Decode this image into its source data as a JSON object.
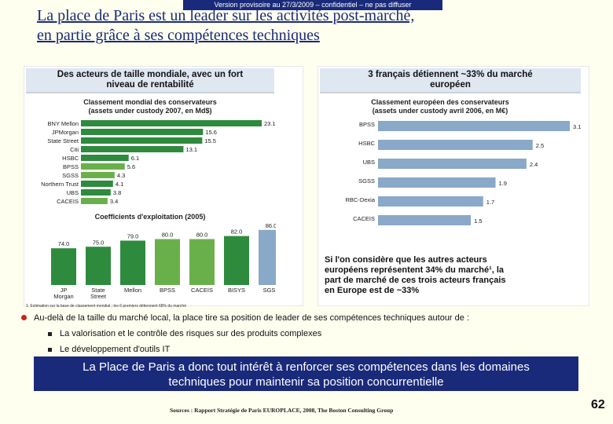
{
  "banner": "Version provisoire au 27/3/2009 – confidentiel – ne pas diffuser",
  "title_line1": "La place de Paris est un leader sur les activités post-marché,",
  "title_line2": "en partie grâce à ses compétences techniques",
  "left_panel": {
    "header_line1": "Des acteurs de taille mondiale, avec un fort",
    "header_line2": "niveau de rentabilité",
    "footnote": "1. Estimation sur la base de classement mondial ; les 6 premiers détiennent 68% du marché"
  },
  "right_panel": {
    "header_line1": "3 français détiennent ~33% du marché",
    "header_line2": "européen",
    "note_lines": [
      "Si l'on considère que les autres acteurs",
      "européens représentent 34% du marché¹, la",
      "part de marché de ces trois acteurs français",
      "en Europe est de ~33%"
    ]
  },
  "chart_data": [
    {
      "type": "bar",
      "orientation": "horizontal",
      "title_line1": "Classement mondial des conservateurs",
      "title_line2": "(assets under custody 2007, en Md$)",
      "categories": [
        "BNY Mellon",
        "JPMorgan",
        "State Street",
        "Citi",
        "HSBC",
        "BPSS",
        "SGSS",
        "Northern Trust",
        "UBS",
        "CACEIS"
      ],
      "values": [
        23.1,
        15.6,
        15.5,
        13.1,
        6.1,
        5.6,
        4.3,
        4.1,
        3.8,
        3.4
      ],
      "labels": [
        "23.1",
        "15.6",
        "15.5",
        "13.1",
        "6.1",
        "5.6",
        "4.3",
        "4.1",
        "3.8",
        "3.4"
      ],
      "colors": [
        "#2e8b3e",
        "#2e8b3e",
        "#2e8b3e",
        "#2e8b3e",
        "#2e8b3e",
        "#6ab04a",
        "#6ab04a",
        "#2e8b3e",
        "#2e8b3e",
        "#6ab04a"
      ]
    },
    {
      "type": "bar",
      "orientation": "vertical",
      "title": "Coefficients d'exploitation (2005)",
      "categories": [
        "JP Morgan",
        "State Street",
        "Mellon",
        "BPSS",
        "CACEIS",
        "BISYS",
        "SGSS"
      ],
      "category_lines": [
        [
          "JP",
          "Morgan"
        ],
        [
          "State",
          "Street"
        ],
        [
          "Mellon"
        ],
        [
          "BPSS"
        ],
        [
          "CACEIS"
        ],
        [
          "BISYS"
        ],
        [
          "SGSS"
        ]
      ],
      "values": [
        74.0,
        75.0,
        79.0,
        80.0,
        80.0,
        82.0,
        86.0
      ],
      "labels": [
        "74.0",
        "75.0",
        "79.0",
        "80.0",
        "80.0",
        "82.0",
        "86.0"
      ],
      "ylim": [
        50,
        90
      ],
      "colors": [
        "#2e8b3e",
        "#2e8b3e",
        "#2e8b3e",
        "#6ab04a",
        "#6ab04a",
        "#2e8b3e",
        "#8aa8c8"
      ]
    },
    {
      "type": "bar",
      "orientation": "horizontal",
      "title_line1": "Classement européen des conservateurs",
      "title_line2": "(assets under custody avril 2006, en M€)",
      "categories": [
        "BPSS",
        "HSBC",
        "UBS",
        "SGSS",
        "RBC-Dexia",
        "CACEIS"
      ],
      "values": [
        3.1,
        2.5,
        2.4,
        1.9,
        1.7,
        1.5
      ],
      "labels": [
        "3.1",
        "2.5",
        "2.4",
        "1.9",
        "1.7",
        "1.5"
      ],
      "color": "#8aa8c8"
    }
  ],
  "bullets": {
    "main": "Au-delà de la taille du marché local, la place tire sa position de leader de ses compétences techniques autour de :",
    "sub1": "La valorisation et le contrôle des risques sur des produits complexes",
    "sub2": "Le développement d'outils IT"
  },
  "conclusion_line1": "La Place de Paris a donc tout intérêt à renforcer ses compétences dans les domaines",
  "conclusion_line2": "techniques pour maintenir sa position concurrentielle",
  "source": "Sources : Rapport Stratégie de Paris EUROPLACE, 2008, The Boston Consulting Group",
  "page_number": "62"
}
